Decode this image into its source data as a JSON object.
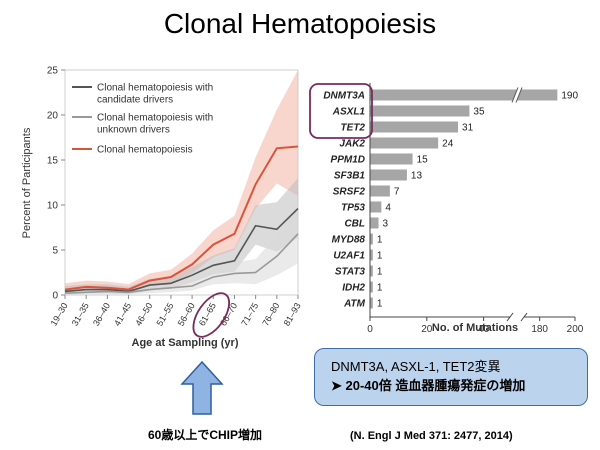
{
  "title": "Clonal Hematopoiesis",
  "chart_data": [
    {
      "type": "line",
      "ylabel": "Percent of Participants",
      "xlabel": "Age at Sampling (yr)",
      "ylim": [
        0,
        25
      ],
      "yticks": [
        0,
        5,
        10,
        15,
        20,
        25
      ],
      "categories": [
        "19–30",
        "31–35",
        "36–40",
        "41–45",
        "46–50",
        "51–55",
        "56–60",
        "61–65",
        "66–70",
        "71–75",
        "76–80",
        "81–93"
      ],
      "legend_position": "top-left",
      "series": [
        {
          "name": "Clonal hematopoiesis with candidate drivers",
          "color": "#555555",
          "values": [
            0.4,
            0.6,
            0.6,
            0.4,
            1.1,
            1.3,
            2.2,
            3.3,
            3.8,
            7.7,
            7.3,
            9.6
          ],
          "ci_low": [
            0.1,
            0.2,
            0.2,
            0.1,
            0.5,
            0.7,
            1.4,
            2.3,
            2.6,
            5.6,
            4.8,
            6.4
          ],
          "ci_high": [
            1.0,
            1.2,
            1.2,
            0.9,
            1.8,
            2.0,
            3.1,
            4.4,
            5.2,
            10.0,
            10.3,
            13.0
          ]
        },
        {
          "name": "Clonal hematopoiesis with unknown drivers",
          "color": "#999999",
          "values": [
            0.2,
            0.3,
            0.4,
            0.3,
            0.6,
            0.8,
            1.0,
            2.0,
            2.4,
            2.5,
            4.3,
            6.8
          ],
          "ci_low": [
            0.0,
            0.1,
            0.1,
            0.1,
            0.2,
            0.3,
            0.5,
            1.2,
            1.3,
            1.2,
            2.2,
            3.5
          ],
          "ci_high": [
            0.6,
            0.7,
            0.8,
            0.7,
            1.1,
            1.3,
            1.6,
            2.9,
            3.6,
            4.0,
            6.6,
            10.2
          ]
        },
        {
          "name": "Clonal hematopoiesis",
          "color": "#d9543b",
          "values": [
            0.6,
            0.9,
            0.8,
            0.6,
            1.6,
            2.0,
            3.4,
            5.6,
            6.8,
            12.3,
            16.3,
            16.5
          ],
          "ci_low": [
            0.2,
            0.4,
            0.3,
            0.2,
            1.0,
            1.3,
            2.4,
            4.2,
            5.0,
            9.6,
            12.4,
            11.0
          ],
          "ci_high": [
            1.3,
            1.6,
            1.5,
            1.2,
            2.4,
            2.8,
            4.6,
            7.2,
            8.8,
            15.3,
            20.6,
            25.0
          ]
        }
      ],
      "highlight_category": "61–65"
    },
    {
      "type": "bar",
      "orientation": "horizontal",
      "xlabel": "No. of Mutations",
      "xticks": [
        "0",
        "20",
        "40",
        "180",
        "200"
      ],
      "axis_break": [
        50,
        170
      ],
      "categories": [
        "DNMT3A",
        "ASXL1",
        "TET2",
        "JAK2",
        "PPM1D",
        "SF3B1",
        "SRSF2",
        "TP53",
        "CBL",
        "MYD88",
        "U2AF1",
        "STAT3",
        "IDH2",
        "ATM"
      ],
      "values": [
        190,
        35,
        31,
        24,
        15,
        13,
        7,
        4,
        3,
        1,
        1,
        1,
        1,
        1
      ],
      "value_labels": [
        "190",
        "35",
        "31",
        "24",
        "15",
        "13",
        "7",
        "4",
        "3",
        "1",
        "1",
        "1",
        "1",
        "1"
      ],
      "highlighted": [
        "DNMT3A",
        "ASXL1",
        "TET2"
      ],
      "bar_color": "#a6a6a6"
    }
  ],
  "callout": {
    "line1": "DNMT3A, ASXL-1, TET2変異",
    "line2": "➤ 20-40倍 造血器腫瘍発症の増加"
  },
  "arrow_note": "60歳以上でCHIP増加",
  "citation": "(N. Engl J Med 371: 2477, 2014)",
  "colors": {
    "arrow_fill": "#8fb4e3",
    "arrow_stroke": "#2f5f9e",
    "highlight_oval": "#7a2a5c"
  }
}
